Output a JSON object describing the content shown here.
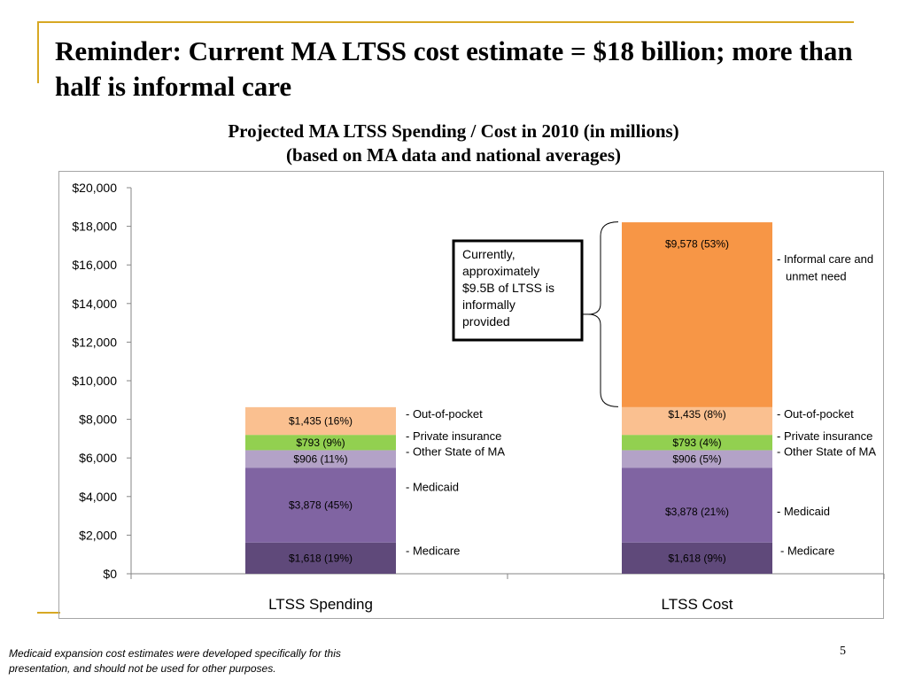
{
  "slide": {
    "title": "Reminder: Current MA LTSS cost estimate = $18 billion; more than half is informal care",
    "footnote": "Medicaid expansion cost estimates were developed specifically for this presentation, and should not be used for other purposes.",
    "page_number": "5"
  },
  "chart_data": {
    "type": "bar",
    "stacked": true,
    "title_lines": [
      "Projected MA LTSS Spending / Cost in 2010 (in millions)",
      "(based on MA data and national averages)"
    ],
    "categories": [
      "LTSS Spending",
      "LTSS Cost"
    ],
    "ylim": [
      0,
      20000
    ],
    "yticks": [
      0,
      2000,
      4000,
      6000,
      8000,
      10000,
      12000,
      14000,
      16000,
      18000,
      20000
    ],
    "ytick_labels": [
      "$0",
      "$2,000",
      "$4,000",
      "$6,000",
      "$8,000",
      "$10,000",
      "$12,000",
      "$14,000",
      "$16,000",
      "$18,000",
      "$20,000"
    ],
    "grid": false,
    "series": [
      {
        "key": "medicare",
        "color": "#5f497a",
        "values": [
          1618,
          1618
        ],
        "data_labels": [
          "$1,618 (19%)",
          "$1,618 (9%)"
        ],
        "side_labels": [
          "- Medicare",
          "- Medicare"
        ]
      },
      {
        "key": "medicaid",
        "color": "#8064a2",
        "values": [
          3878,
          3878
        ],
        "data_labels": [
          "$3,878 (45%)",
          "$3,878 (21%)"
        ],
        "side_labels": [
          "- Medicaid",
          "- Medicaid"
        ]
      },
      {
        "key": "other_state",
        "color": "#b3a2c7",
        "values": [
          906,
          906
        ],
        "data_labels": [
          "$906 (11%)",
          "$906 (5%)"
        ],
        "side_labels": [
          "- Other State of MA",
          "- Other State of MA"
        ]
      },
      {
        "key": "private",
        "color": "#92d050",
        "values": [
          793,
          793
        ],
        "data_labels": [
          "$793 (9%)",
          "$793 (4%)"
        ],
        "side_labels": [
          "- Private insurance",
          "- Private insurance"
        ]
      },
      {
        "key": "oop",
        "color": "#fac090",
        "values": [
          1435,
          1435
        ],
        "data_labels": [
          "$1,435 (16%)",
          "$1,435 (8%)"
        ],
        "side_labels": [
          "- Out-of-pocket",
          "- Out-of-pocket"
        ]
      },
      {
        "key": "informal",
        "color": "#f79646",
        "values": [
          0,
          9578
        ],
        "data_labels": [
          "",
          "$9,578 (53%)"
        ],
        "side_labels": [
          "",
          "- Informal care and unmet need"
        ]
      }
    ],
    "annotation": "Currently, approximately $9.5B of LTSS is informally provided"
  }
}
